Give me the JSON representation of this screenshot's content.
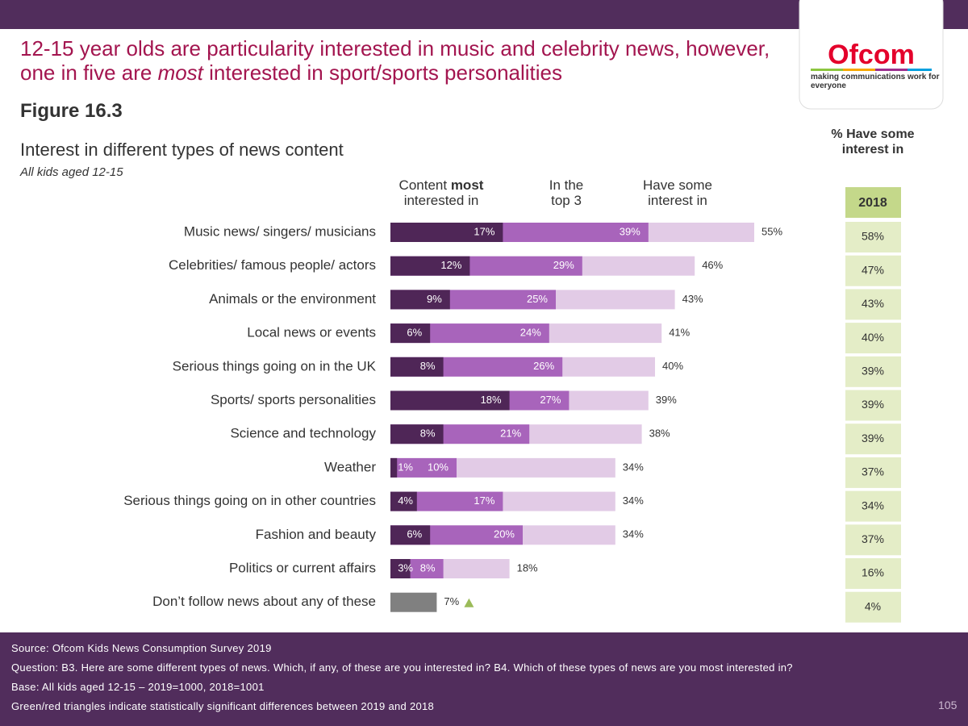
{
  "chart_data": {
    "type": "overlapping-bar",
    "title": "12-15 year olds are particularity interested in music and celebrity news, however, one in five are most interested in sport/sports personalities",
    "title_emphasis": "most",
    "figure_label": "Figure 16.3",
    "subtitle": "Interest in different types of news content",
    "note": "All kids aged 12-15",
    "categories": [
      "Music news/ singers/ musicians",
      "Celebrities/ famous people/ actors",
      "Animals or the environment",
      "Local news or events",
      "Serious things going on in the UK",
      "Sports/ sports personalities",
      "Science and technology",
      "Weather",
      "Serious things going on in other countries",
      "Fashion and beauty",
      "Politics or current affairs",
      "Don’t follow news about any of these"
    ],
    "series": [
      {
        "name": "Content most interested in",
        "emphasis": "most",
        "color": "#4f2657",
        "values": [
          17,
          12,
          9,
          6,
          8,
          18,
          8,
          1,
          4,
          6,
          3,
          null
        ],
        "value_labels": [
          "17%",
          "12%",
          "9%",
          "6%",
          "8%",
          "18%",
          "8%",
          "1%",
          "4%",
          "6%",
          "3%",
          null
        ]
      },
      {
        "name": "In the top 3",
        "color": "#a864bb",
        "values": [
          39,
          29,
          25,
          24,
          26,
          27,
          21,
          10,
          17,
          20,
          8,
          null
        ],
        "value_labels": [
          "39%",
          "29%",
          "25%",
          "24%",
          "26%",
          "27%",
          "21%",
          "10%",
          "17%",
          "20%",
          "8%",
          null
        ]
      },
      {
        "name": "Have some interest in",
        "color": "#e2cbe6",
        "values": [
          55,
          46,
          43,
          41,
          40,
          39,
          38,
          34,
          34,
          34,
          18,
          7
        ],
        "value_labels": [
          "55%",
          "46%",
          "43%",
          "41%",
          "40%",
          "39%",
          "38%",
          "34%",
          "34%",
          "34%",
          "18%",
          "7%"
        ],
        "point_colors": [
          null,
          null,
          null,
          null,
          null,
          null,
          null,
          null,
          null,
          null,
          null,
          "#808080"
        ]
      }
    ],
    "significance_up": [
      11
    ],
    "significance_color": "#9bbb59",
    "comparison": {
      "title": "% Have some interest in",
      "header": "2018",
      "values": [
        "58%",
        "47%",
        "43%",
        "40%",
        "39%",
        "39%",
        "39%",
        "37%",
        "34%",
        "37%",
        "16%",
        "4%"
      ]
    }
  },
  "logo": {
    "name": "Ofcom",
    "tagline": "making communications work for everyone"
  },
  "footer": {
    "lines": [
      "Source: Ofcom Kids News Consumption Survey 2019",
      "Question: B3. Here are some different types of news. Which, if any, of these are you interested in? B4. Which of these types of news are you most interested in?",
      "Base: All kids aged 12-15 – 2019=1000, 2018=1001",
      "Green/red triangles indicate statistically significant differences between 2019 and 2018"
    ],
    "page_number": "105"
  }
}
